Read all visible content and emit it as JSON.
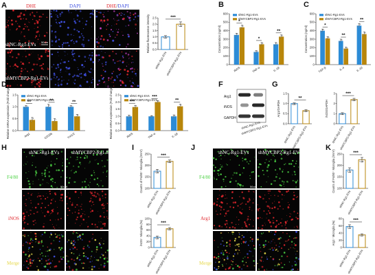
{
  "colors": {
    "ctrl": "#2c8bd6",
    "treat": "#b8860b",
    "green": "#4cd244",
    "red": "#e0262c",
    "blue": "#3f50e0",
    "yellow": "#e6d84a"
  },
  "panels": {
    "A": {
      "letter": "A",
      "headers": {
        "dhe": "DHE",
        "dapi": "DAPI",
        "merge_a": "DHE",
        "merge_sep": "/",
        "merge_b": "DAPI"
      },
      "rows": [
        "shNC-Rg1-EVs",
        "shMYCBP2-Rg1-EVs"
      ],
      "scale": "50um"
    },
    "H": {
      "letter": "H",
      "cols": [
        "shNC-Rg1-EVs",
        "shMYCBP2-Rg1-EVs"
      ],
      "rows": [
        "F4/80",
        "iNOS",
        "Merge"
      ],
      "scale": "50um"
    },
    "J": {
      "letter": "J",
      "cols": [
        "shNC-Rg1-EVs",
        "shMYCBP2-Rg1-EVs"
      ],
      "rows": [
        "F4/80",
        "Arg1",
        "Merge"
      ],
      "scale": "50um"
    },
    "F": {
      "letter": "F",
      "bands": [
        "Arg1",
        "iNOS",
        "GAPDH"
      ],
      "lanes": [
        "shNC-Rg1-EVs",
        "shMYCBP2-Rg1-EVs"
      ]
    }
  },
  "chart_data": [
    {
      "id": "A-bar",
      "type": "bar",
      "categories": [
        "shNC-Rg1-EVs",
        "shMYCBP2-Rg1-EVs"
      ],
      "values": [
        1.0,
        2.0
      ],
      "errors": [
        0.1,
        0.18
      ],
      "ylabel": "Relative fluorescence intensity",
      "ylim": [
        0,
        2.5
      ],
      "yticks": [
        "0.0",
        "0.5",
        "1.0",
        "1.5",
        "2.0",
        "2.5"
      ],
      "sig": [
        "***"
      ]
    },
    {
      "id": "B",
      "type": "bar",
      "letter": "B",
      "categories": [
        "iNOS",
        "TNF-α",
        "IL-1β"
      ],
      "series": [
        {
          "name": "shNC-Rg1-EVs",
          "values": [
            350,
            150,
            240
          ],
          "errors": [
            20,
            15,
            20
          ]
        },
        {
          "name": "shMYCBP2-Rg1-EVs",
          "values": [
            440,
            240,
            330
          ],
          "errors": [
            25,
            20,
            20
          ]
        }
      ],
      "ylabel": "Concentration (ng/ml)",
      "ylim": [
        0,
        600
      ],
      "yticks": [
        "0",
        "100",
        "200",
        "300",
        "400",
        "500",
        "600"
      ],
      "sig": [
        "*",
        "*",
        "**"
      ]
    },
    {
      "id": "C",
      "type": "bar",
      "letter": "C",
      "categories": [
        "TGF-β",
        "IL-4",
        "IL-10"
      ],
      "series": [
        {
          "name": "shNC-Rg1-EVs",
          "values": [
            400,
            280,
            460
          ],
          "errors": [
            20,
            20,
            25
          ]
        },
        {
          "name": "shMYCBP2-Rg1-EVs",
          "values": [
            310,
            190,
            360
          ],
          "errors": [
            20,
            15,
            25
          ]
        }
      ],
      "ylabel": "Concentration (ng/ml)",
      "ylim": [
        0,
        600
      ],
      "yticks": [
        "0",
        "100",
        "200",
        "300",
        "400",
        "500",
        "600"
      ],
      "sig": [
        "*",
        "**",
        "**"
      ]
    },
    {
      "id": "D",
      "type": "bar",
      "letter": "D",
      "categories": [
        "Arg1",
        "CD206",
        "Ym1/2"
      ],
      "series": [
        {
          "name": "shNC-Rg1-EVs",
          "values": [
            1.0,
            1.0,
            1.0
          ],
          "errors": [
            0.05,
            0.1,
            0.05
          ]
        },
        {
          "name": "shMYCBP2-Rg1-EVs",
          "values": [
            0.45,
            0.4,
            0.6
          ],
          "errors": [
            0.1,
            0.1,
            0.08
          ]
        }
      ],
      "ylabel": "Relative mRNA expression (Fold change)",
      "ylim": [
        0,
        1.5
      ],
      "yticks": [
        "0.0",
        "0.5",
        "1.0",
        "1.5"
      ],
      "sig": [
        "**",
        "**",
        "**"
      ]
    },
    {
      "id": "E",
      "type": "bar",
      "letter": "E",
      "categories": [
        "iNOS",
        "TNF-α",
        "IL-1β"
      ],
      "series": [
        {
          "name": "shNC-Rg1-EVs",
          "values": [
            1.0,
            1.0,
            1.0
          ],
          "errors": [
            0.08,
            0.05,
            0.1
          ]
        },
        {
          "name": "shMYCBP2-Rg1-EVs",
          "values": [
            1.65,
            2.0,
            1.7
          ],
          "errors": [
            0.12,
            0.1,
            0.15
          ]
        }
      ],
      "ylabel": "Relative mRNA expression (Fold change)",
      "ylim": [
        0,
        2.5
      ],
      "yticks": [
        "0.0",
        "0.5",
        "1.0",
        "1.5",
        "2.0",
        "2.5"
      ],
      "sig": [
        "***",
        "***",
        "**"
      ]
    },
    {
      "id": "G1",
      "type": "bar",
      "letter": "G",
      "categories": [
        "shNC-Rg1-EVs",
        "shMYCBP2-Rg1-EVs"
      ],
      "values": [
        1.0,
        0.65
      ],
      "errors": [
        0.05,
        0.05
      ],
      "ylabel": "Arg1/GAPDH",
      "ylim": [
        0,
        1.5
      ],
      "yticks": [
        "0.0",
        "0.5",
        "1.0",
        "1.5"
      ],
      "sig": [
        "**"
      ]
    },
    {
      "id": "G2",
      "type": "bar",
      "categories": [
        "shNC-Rg1-EVs",
        "shMYCBP2-Rg1-EVs"
      ],
      "values": [
        1.0,
        2.4
      ],
      "errors": [
        0.1,
        0.12
      ],
      "ylabel": "iNOS/GAPDH",
      "ylim": [
        0,
        3
      ],
      "yticks": [
        "0",
        "1",
        "2",
        "3"
      ],
      "sig": [
        "***"
      ]
    },
    {
      "id": "I1",
      "type": "bar",
      "letter": "I",
      "categories": [
        "shNC-Rg1-EVs",
        "shMYCBP2-Rg1-EVs"
      ],
      "values": [
        175,
        218
      ],
      "errors": [
        8,
        6
      ],
      "ylabel": "Counts of F4/80⁺ Microglia (/mm²)",
      "ylim": [
        100,
        250
      ],
      "yticks": [
        "100",
        "150",
        "200",
        "250"
      ],
      "sig": [
        "***"
      ]
    },
    {
      "id": "I2",
      "type": "bar",
      "categories": [
        "shNC-Rg1-EVs",
        "shMYCBP2-Rg1-EVs"
      ],
      "values": [
        35,
        65
      ],
      "errors": [
        5,
        4
      ],
      "ylabel": "iNOS⁺ Microglia (%)",
      "ylim": [
        0,
        100
      ],
      "yticks": [
        "0",
        "20",
        "40",
        "60",
        "80",
        "100"
      ],
      "sig": [
        "***"
      ]
    },
    {
      "id": "K1",
      "type": "bar",
      "letter": "K",
      "categories": [
        "shNC-Rg1-EVs",
        "shMYCBP2-Rg1-EVs"
      ],
      "values": [
        180,
        225
      ],
      "errors": [
        10,
        10
      ],
      "ylabel": "Counts of F4/80⁺ Microglia (/mm²)",
      "ylim": [
        100,
        250
      ],
      "yticks": [
        "100",
        "150",
        "200",
        "250"
      ],
      "sig": [
        "***"
      ]
    },
    {
      "id": "K2",
      "type": "bar",
      "categories": [
        "shNC-Rg1-EVs",
        "shMYCBP2-Rg1-EVs"
      ],
      "values": [
        58,
        35
      ],
      "errors": [
        5,
        3
      ],
      "ylabel": "Arg1⁺ Microglia (%)",
      "ylim": [
        0,
        80
      ],
      "yticks": [
        "0",
        "20",
        "40",
        "60",
        "80"
      ],
      "sig": [
        "***"
      ]
    }
  ]
}
